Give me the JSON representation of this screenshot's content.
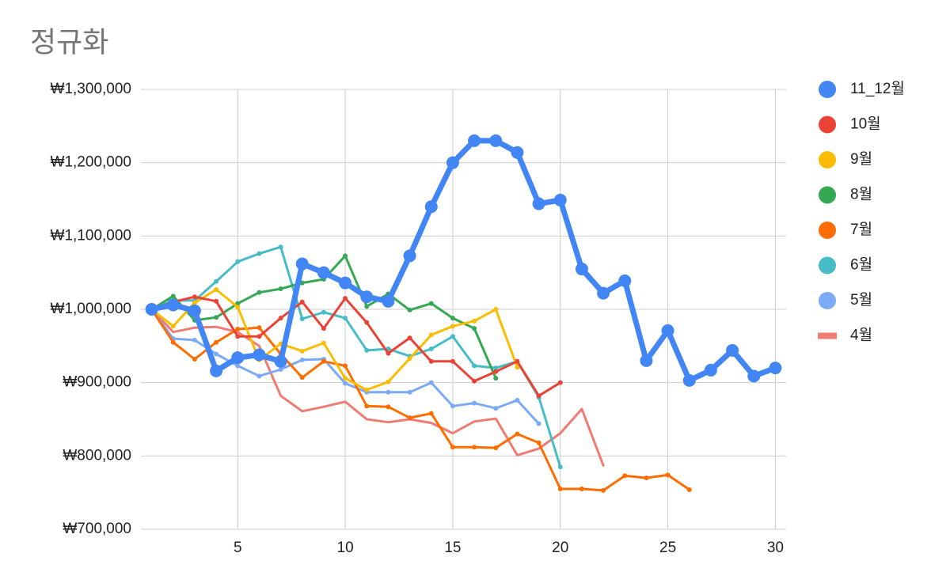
{
  "chart_data": {
    "type": "line",
    "title": "정규화",
    "x": [
      1,
      2,
      3,
      4,
      5,
      6,
      7,
      8,
      9,
      10,
      11,
      12,
      13,
      14,
      15,
      16,
      17,
      18,
      19,
      20,
      21,
      22,
      23,
      24,
      25,
      26,
      27,
      28,
      29,
      30
    ],
    "xlim": [
      0.5,
      30.5
    ],
    "xticks": [
      5,
      10,
      15,
      20,
      25,
      30
    ],
    "ylim": [
      700000,
      1300000
    ],
    "yticks": [
      {
        "value": 700000,
        "label": "₩700,000"
      },
      {
        "value": 800000,
        "label": "₩800,000"
      },
      {
        "value": 900000,
        "label": "₩900,000"
      },
      {
        "value": 1000000,
        "label": "₩1,000,000"
      },
      {
        "value": 1100000,
        "label": "₩1,100,000"
      },
      {
        "value": 1200000,
        "label": "₩1,200,000"
      },
      {
        "value": 1300000,
        "label": "₩1,300,000"
      }
    ],
    "grid": true,
    "legend": "right",
    "series": [
      {
        "name": "11_12월",
        "color": "#4285f4",
        "marker": true,
        "values": [
          1000000,
          1006000,
          998000,
          916000,
          934000,
          938000,
          929000,
          1062000,
          1050000,
          1036000,
          1017000,
          1011000,
          1073000,
          1140000,
          1200000,
          1230000,
          1230000,
          1214000,
          1144000,
          1149000,
          1055000,
          1022000,
          1039000,
          930000,
          971000,
          903000,
          917000,
          944000,
          909000,
          920000
        ]
      },
      {
        "name": "10월",
        "color": "#ea4335",
        "marker": true,
        "values": [
          1000000,
          1010000,
          1017000,
          1011000,
          963000,
          963000,
          988000,
          1010000,
          974000,
          1015000,
          982000,
          940000,
          961000,
          929000,
          929000,
          902000,
          915000,
          929000,
          882000,
          900000,
          null,
          null,
          null,
          null,
          null,
          null,
          null,
          null,
          null,
          null
        ]
      },
      {
        "name": "9월",
        "color": "#fbbc04",
        "marker": true,
        "values": [
          1000000,
          977000,
          1009000,
          1027000,
          1003000,
          931000,
          953000,
          943000,
          954000,
          906000,
          890000,
          901000,
          933000,
          965000,
          977000,
          984000,
          1000000,
          921000,
          null,
          null,
          null,
          null,
          null,
          null,
          null,
          null,
          null,
          null,
          null,
          null
        ]
      },
      {
        "name": "8월",
        "color": "#34a853",
        "marker": true,
        "values": [
          1000000,
          1018000,
          985000,
          989000,
          1008000,
          1023000,
          1028000,
          1036000,
          1041000,
          1073000,
          1004000,
          1021000,
          999000,
          1008000,
          988000,
          974000,
          906000,
          null,
          null,
          null,
          null,
          null,
          null,
          null,
          null,
          null,
          null,
          null,
          null,
          null
        ]
      },
      {
        "name": "7월",
        "color": "#ff6d01",
        "marker": true,
        "values": [
          1000000,
          955000,
          932000,
          955000,
          973000,
          975000,
          939000,
          907000,
          929000,
          923000,
          868000,
          867000,
          852000,
          858000,
          812000,
          812000,
          811000,
          830000,
          818000,
          755000,
          755000,
          753000,
          773000,
          770000,
          774000,
          754000,
          null,
          null,
          null,
          null
        ]
      },
      {
        "name": "6월",
        "color": "#46bdc6",
        "marker": true,
        "values": [
          1000000,
          1012000,
          1012000,
          1038000,
          1065000,
          1076000,
          1085000,
          987000,
          996000,
          988000,
          944000,
          946000,
          936000,
          946000,
          963000,
          923000,
          920000,
          929000,
          880000,
          785000,
          null,
          null,
          null,
          null,
          null,
          null,
          null,
          null,
          null,
          null
        ]
      },
      {
        "name": "5월",
        "color": "#7baaf7",
        "marker": true,
        "values": [
          1000000,
          960000,
          958000,
          939000,
          923000,
          909000,
          918000,
          931000,
          932000,
          899000,
          887000,
          887000,
          887000,
          900000,
          868000,
          872000,
          865000,
          876000,
          844000,
          null,
          null,
          null,
          null,
          null,
          null,
          null,
          null,
          null,
          null,
          null
        ]
      },
      {
        "name": "4월",
        "color": "#f07b72",
        "marker": false,
        "values": [
          1000000,
          969000,
          975000,
          976000,
          969000,
          950000,
          882000,
          861000,
          867000,
          874000,
          850000,
          846000,
          850000,
          845000,
          831000,
          847000,
          851000,
          801000,
          810000,
          831000,
          864000,
          787000,
          null,
          null,
          null,
          null,
          null,
          null,
          null,
          null
        ]
      }
    ]
  }
}
